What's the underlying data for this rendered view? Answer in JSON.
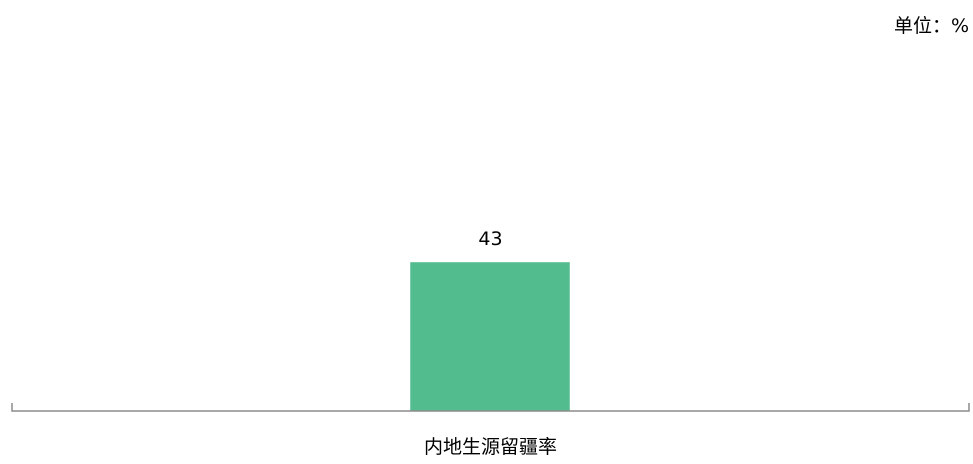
{
  "chart_data": {
    "type": "bar",
    "title": "",
    "unit_label": "单位：%",
    "categories": [
      "内地生源留疆率"
    ],
    "series": [
      {
        "values": [
          43
        ]
      }
    ],
    "ylim": [
      0,
      100
    ],
    "grid": false,
    "legend": "none",
    "data_labels": true,
    "colors": {
      "bar": "#52bc8e",
      "axis": "#8c8c8c",
      "text": "#000000"
    }
  }
}
